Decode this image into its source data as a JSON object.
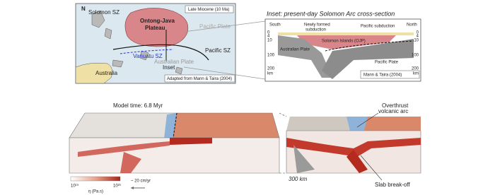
{
  "map": {
    "north": "N",
    "solomon_sz": "Solomon SZ",
    "era": "Late Miocene (10 Ma)",
    "ontong_java": [
      "Ontong-Java",
      "Plateau"
    ],
    "pacific_plate": "Pacific Plate",
    "vanuatu_sz": "Vanuatu SZ",
    "pacific_sz": "Pacific SZ",
    "inset": "Inset",
    "australia": "Australia",
    "australian_plate": "Australian Plate",
    "credit": "Adapted from Mann & Taira (2004)"
  },
  "inset": {
    "title": "Inset: present-day Solomon Arc cross-section",
    "south": "South",
    "north": "North",
    "new_subduction": [
      "Newly formed",
      "subduction"
    ],
    "pacific_subduction": "Pacific subduction",
    "solomon": "Solomon Islands (OJP)",
    "australian_plate": "Australian Plate",
    "pacific_plate": "Pacific Plate",
    "credit": "Mann & Taira (2004)",
    "depth_left": [
      "0",
      "4",
      "10",
      "100",
      "200",
      "km"
    ],
    "depth_right": [
      "0",
      "4",
      "10",
      "100",
      "200",
      "km"
    ]
  },
  "model": {
    "time": "Model time: 6.8 Myr",
    "overthrust": [
      "Overthrust",
      "volcanic arc"
    ],
    "breakoff": "Slab break-off",
    "scale": "300 km",
    "cbar_min": "10¹⁹",
    "cbar_max": "10²³",
    "cbar_label": "η (Pa.s)",
    "velocity": "~ 20 cm/yr"
  }
}
